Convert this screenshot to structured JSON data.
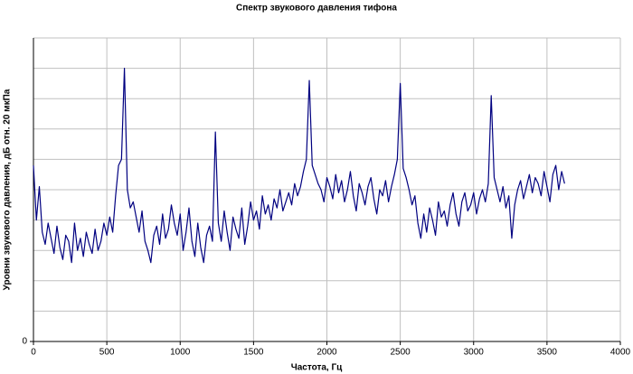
{
  "chart_data": {
    "type": "line",
    "title": "Спектр звукового давления тифона",
    "xlabel": "Частота, Гц",
    "ylabel": "Уровни звукового давления, дБ отн. 20 мкПа",
    "color": "#000080",
    "grid": true,
    "xlim": [
      0,
      4000
    ],
    "xticks": [
      0,
      500,
      1000,
      1500,
      2000,
      2500,
      3000,
      3500,
      4000
    ],
    "ylim": [
      0,
      10
    ],
    "yticks": [
      0
    ],
    "ygrid": [
      0,
      1,
      2,
      3,
      4,
      5,
      6,
      7,
      8,
      9,
      10
    ],
    "x": [
      0,
      20,
      40,
      60,
      80,
      100,
      120,
      140,
      160,
      180,
      200,
      220,
      240,
      260,
      280,
      300,
      320,
      340,
      360,
      380,
      400,
      420,
      440,
      460,
      480,
      500,
      520,
      540,
      560,
      580,
      600,
      620,
      640,
      660,
      680,
      700,
      720,
      740,
      760,
      780,
      800,
      820,
      840,
      860,
      880,
      900,
      920,
      940,
      960,
      980,
      1000,
      1020,
      1040,
      1060,
      1080,
      1100,
      1120,
      1140,
      1160,
      1180,
      1200,
      1220,
      1240,
      1260,
      1280,
      1300,
      1320,
      1340,
      1360,
      1380,
      1400,
      1420,
      1440,
      1460,
      1480,
      1500,
      1520,
      1540,
      1560,
      1580,
      1600,
      1620,
      1640,
      1660,
      1680,
      1700,
      1720,
      1740,
      1760,
      1780,
      1800,
      1820,
      1840,
      1860,
      1880,
      1900,
      1920,
      1940,
      1960,
      1980,
      2000,
      2020,
      2040,
      2060,
      2080,
      2100,
      2120,
      2140,
      2160,
      2180,
      2200,
      2220,
      2240,
      2260,
      2280,
      2300,
      2320,
      2340,
      2360,
      2380,
      2400,
      2420,
      2440,
      2460,
      2480,
      2500,
      2520,
      2540,
      2560,
      2580,
      2600,
      2620,
      2640,
      2660,
      2680,
      2700,
      2720,
      2740,
      2760,
      2780,
      2800,
      2820,
      2840,
      2860,
      2880,
      2900,
      2920,
      2940,
      2960,
      2980,
      3000,
      3020,
      3040,
      3060,
      3080,
      3100,
      3120,
      3140,
      3160,
      3180,
      3200,
      3220,
      3240,
      3260,
      3280,
      3300,
      3320,
      3340,
      3360,
      3380,
      3400,
      3420,
      3440,
      3460,
      3480,
      3500,
      3520,
      3540,
      3560,
      3580,
      3600,
      3620
    ],
    "values": [
      5.8,
      4.0,
      5.1,
      3.6,
      3.2,
      3.9,
      3.4,
      2.9,
      3.8,
      3.1,
      2.7,
      3.5,
      3.3,
      2.6,
      3.9,
      3.0,
      3.4,
      2.8,
      3.6,
      3.2,
      2.9,
      3.7,
      3.0,
      3.3,
      3.9,
      3.5,
      4.1,
      3.6,
      4.8,
      5.8,
      6.0,
      9.0,
      5.0,
      4.4,
      4.6,
      4.1,
      3.6,
      4.3,
      3.3,
      3.0,
      2.6,
      3.5,
      3.8,
      3.2,
      4.2,
      3.4,
      3.7,
      4.5,
      3.9,
      3.5,
      4.2,
      3.0,
      3.6,
      4.4,
      3.3,
      2.8,
      3.9,
      3.1,
      2.6,
      3.5,
      3.8,
      3.3,
      6.9,
      3.9,
      3.3,
      4.3,
      3.6,
      3.0,
      4.1,
      3.7,
      3.4,
      4.4,
      3.2,
      3.8,
      4.6,
      4.0,
      4.3,
      3.7,
      4.8,
      4.2,
      4.5,
      4.0,
      4.7,
      4.4,
      5.0,
      4.3,
      4.6,
      4.9,
      4.5,
      5.2,
      4.8,
      5.1,
      5.6,
      6.0,
      8.6,
      5.8,
      5.5,
      5.2,
      5.0,
      4.6,
      5.4,
      5.1,
      4.7,
      5.5,
      4.9,
      5.3,
      4.6,
      5.0,
      5.6,
      4.8,
      4.3,
      5.2,
      4.9,
      4.5,
      5.1,
      5.4,
      4.7,
      4.2,
      5.0,
      4.8,
      5.3,
      4.6,
      5.1,
      5.5,
      6.0,
      8.5,
      5.7,
      5.4,
      5.0,
      4.5,
      4.8,
      3.9,
      3.4,
      4.2,
      3.6,
      4.4,
      4.0,
      3.5,
      4.6,
      4.1,
      4.3,
      3.8,
      4.5,
      4.9,
      4.2,
      3.8,
      4.6,
      4.9,
      4.3,
      4.5,
      4.9,
      4.2,
      4.7,
      5.0,
      4.6,
      5.2,
      8.1,
      5.4,
      5.0,
      4.6,
      5.1,
      4.4,
      4.8,
      3.4,
      4.5,
      5.0,
      5.3,
      4.7,
      5.1,
      5.5,
      4.9,
      5.4,
      5.2,
      4.8,
      5.6,
      5.1,
      4.6,
      5.5,
      5.8,
      5.0,
      5.6,
      5.2
    ]
  }
}
